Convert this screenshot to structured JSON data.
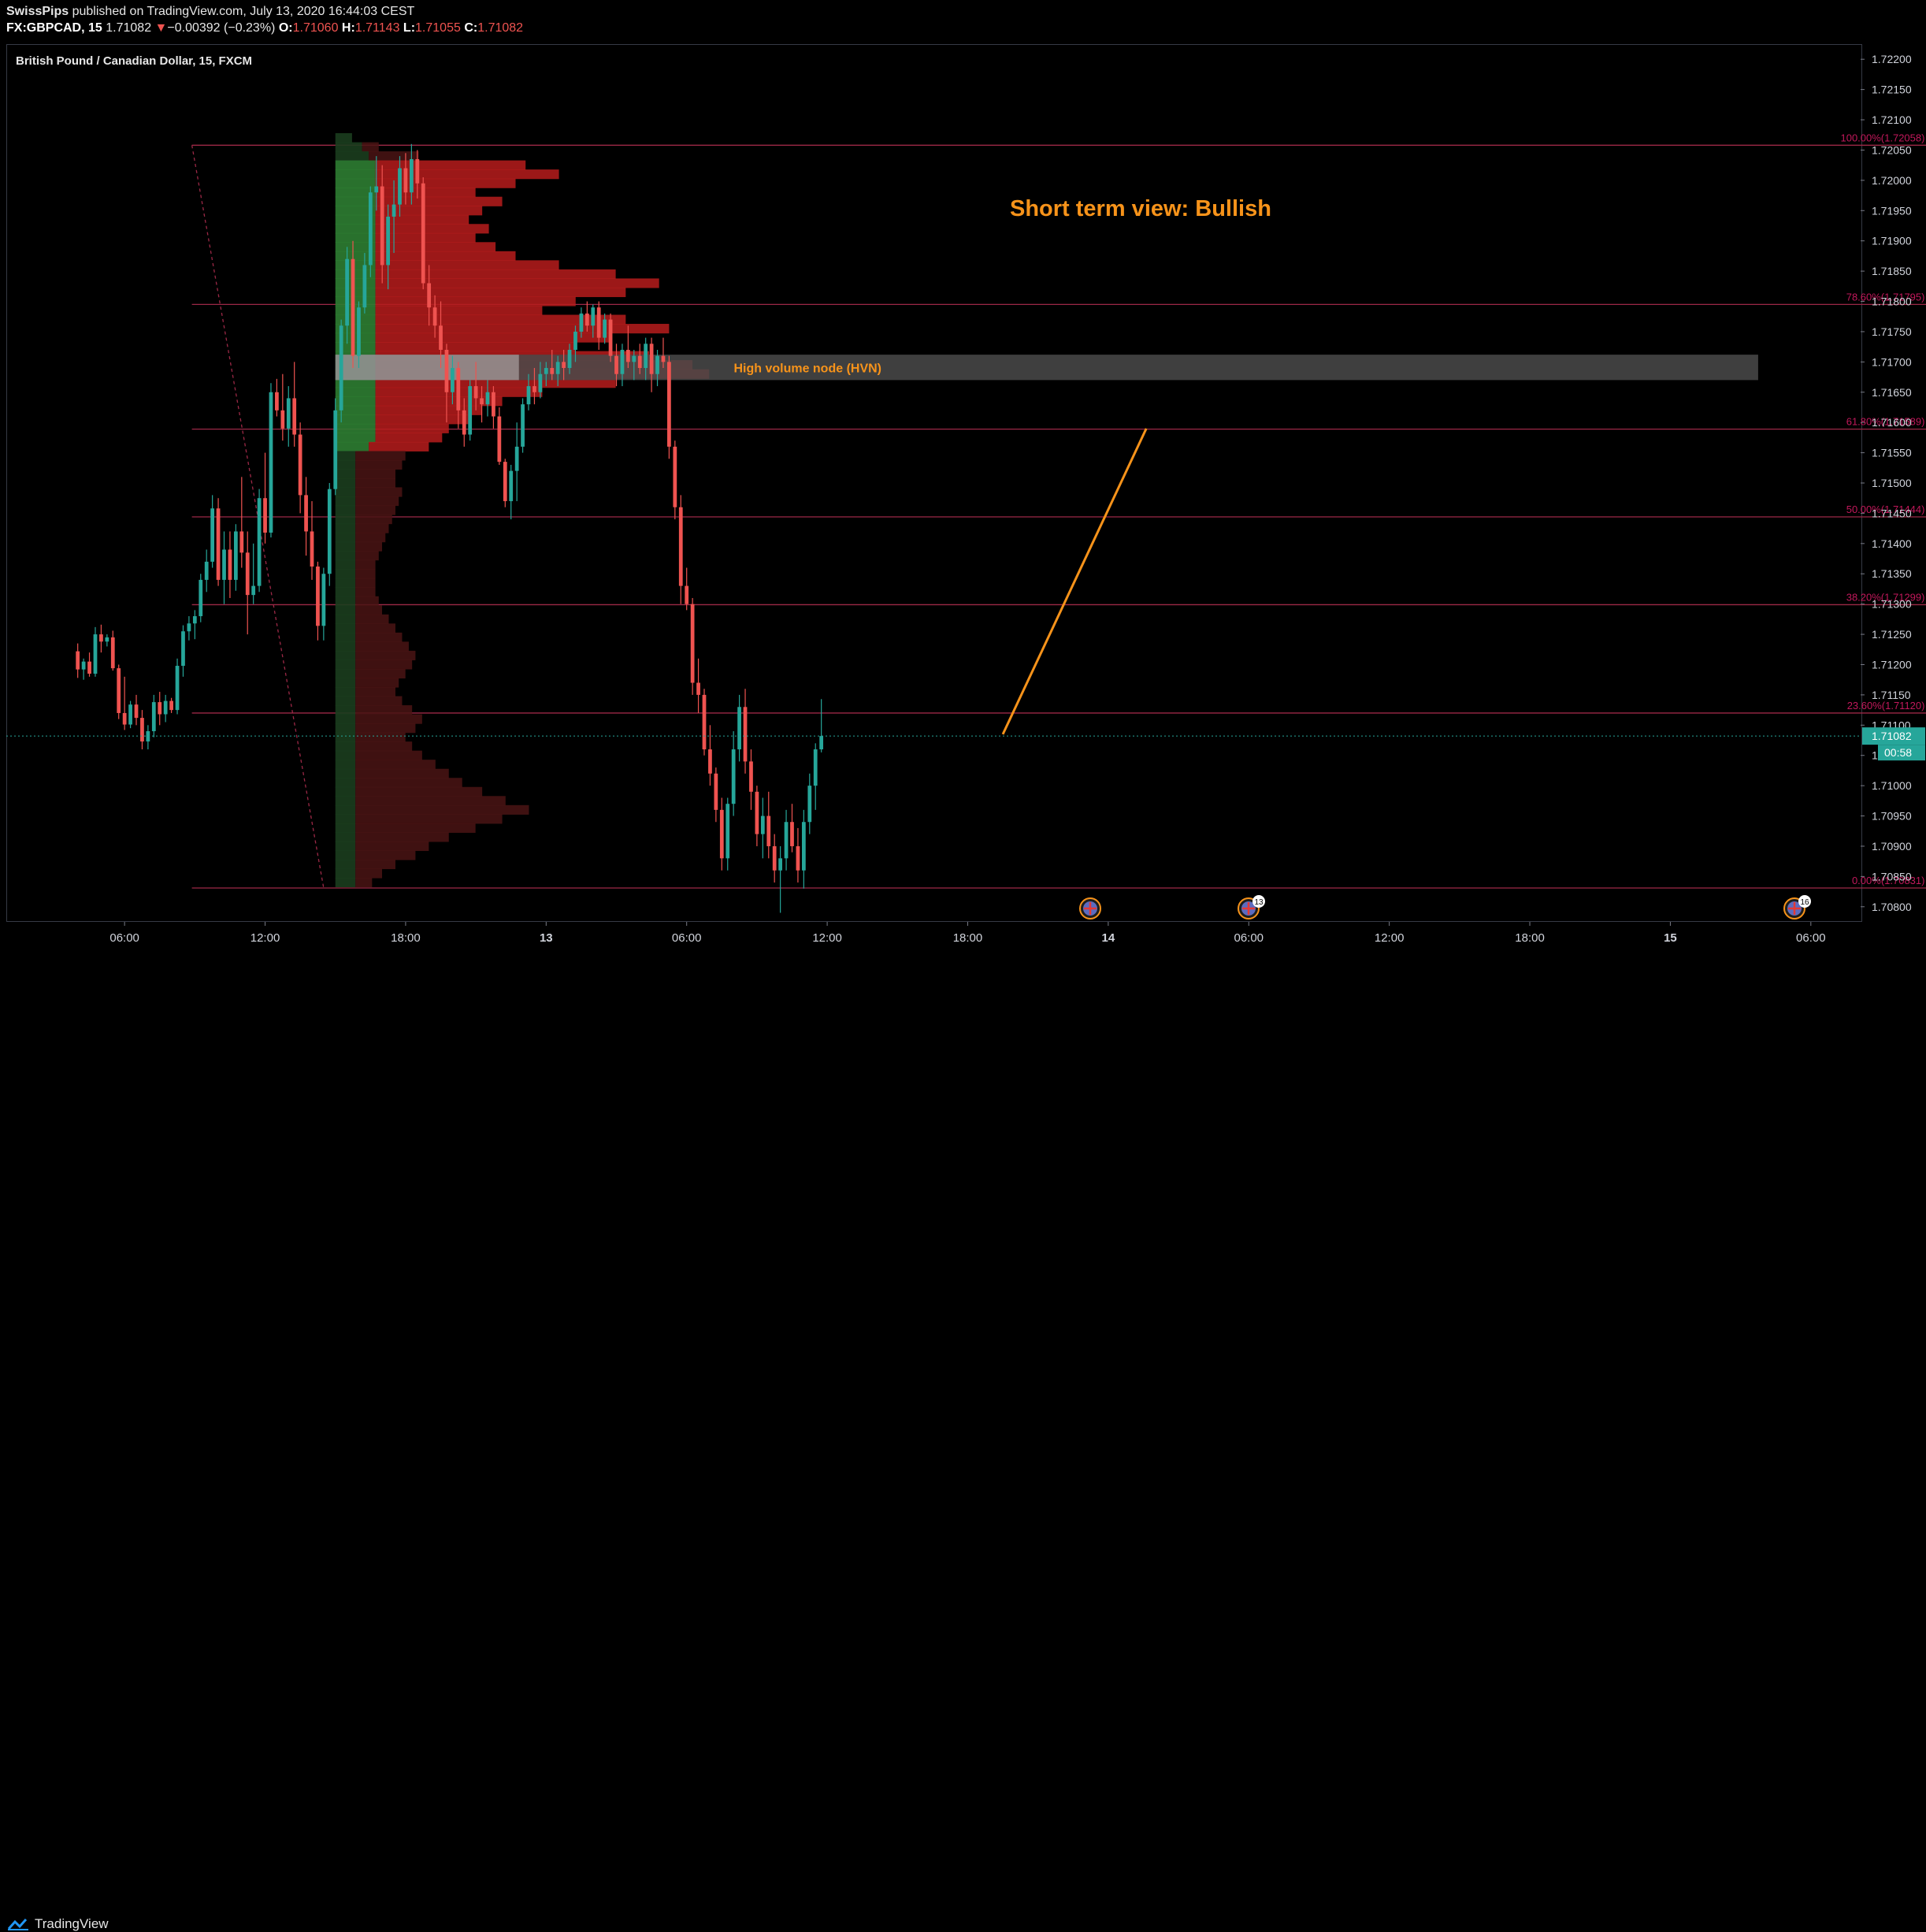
{
  "header": {
    "publisher": "SwissPips",
    "published_text": "published on TradingView.com, July 13, 2020 16:44:03 CEST",
    "symbol": "FX:GBPCAD, 15",
    "last": "1.71082",
    "change_arrow": "▼",
    "change": "−0.00392 (−0.23%)",
    "o_label": "O:",
    "o_value": "1.71060",
    "h_label": "H:",
    "h_value": "1.71143",
    "l_label": "L:",
    "l_value": "1.71055",
    "c_label": "C:",
    "c_value": "1.71082"
  },
  "chart_title": "British Pound / Canadian Dollar, 15, FXCM",
  "footer": {
    "brand": "TradingView"
  },
  "colors": {
    "up": "#26a69a",
    "down": "#ef5350",
    "fib_line": "#9c2846",
    "fib_label": "#c2185b",
    "annotation": "#f7931a",
    "hvn_band": "#4a4a4a",
    "last_price_bg": "#26a69a"
  },
  "chart_data": {
    "type": "candlestick",
    "symbol": "GBPCAD",
    "interval": "15",
    "ylim": [
      1.70775,
      1.72225
    ],
    "y_ticks": [
      "1.72200",
      "1.72150",
      "1.72100",
      "1.72050",
      "1.72000",
      "1.71950",
      "1.71900",
      "1.71850",
      "1.71800",
      "1.71750",
      "1.71700",
      "1.71650",
      "1.71600",
      "1.71550",
      "1.71500",
      "1.71450",
      "1.71400",
      "1.71350",
      "1.71300",
      "1.71250",
      "1.71200",
      "1.71150",
      "1.71100",
      "1.71050",
      "1.71000",
      "1.70950",
      "1.70900",
      "1.70850",
      "1.70800"
    ],
    "x_ticks": [
      {
        "label": "06:00",
        "bar": 8
      },
      {
        "label": "12:00",
        "bar": 32
      },
      {
        "label": "18:00",
        "bar": 56
      },
      {
        "label": "13",
        "bar": 80
      },
      {
        "label": "06:00",
        "bar": 104
      },
      {
        "label": "12:00",
        "bar": 128
      },
      {
        "label": "18:00",
        "bar": 152
      },
      {
        "label": "14",
        "bar": 176
      },
      {
        "label": "06:00",
        "bar": 200
      },
      {
        "label": "12:00",
        "bar": 224
      },
      {
        "label": "18:00",
        "bar": 248
      },
      {
        "label": "15",
        "bar": 272
      },
      {
        "label": "06:00",
        "bar": 296
      }
    ],
    "bar_range": [
      -12.2,
      304.5
    ],
    "last_price": "1.71082",
    "countdown": "00:58",
    "fib_levels": [
      {
        "label": "100.00%(1.72058)",
        "price": 1.72058
      },
      {
        "label": "78.60%(1.71795)",
        "price": 1.71795
      },
      {
        "label": "61.80%(1.71589)",
        "price": 1.71589
      },
      {
        "label": "50.00%(1.71444)",
        "price": 1.71444
      },
      {
        "label": "38.20%(1.71299)",
        "price": 1.71299
      },
      {
        "label": "23.60%(1.71120)",
        "price": 1.7112
      },
      {
        "label": "0.00%(1.70831)",
        "price": 1.70831
      }
    ],
    "fib_bar_range": [
      19.5,
      316
    ],
    "fib_anchor": {
      "from": {
        "bar": 19.5,
        "price": 1.72058
      },
      "to": {
        "bar": 42,
        "price": 1.70831
      }
    },
    "hvn": {
      "label": "High volume node (HVN)",
      "price_top": 1.71712,
      "price_bottom": 1.7167,
      "bar_from": 44,
      "bar_to": 287
    },
    "annotation_text": "Short term view: Bullish",
    "projection": {
      "from": {
        "bar": 158,
        "price": 1.71085
      },
      "to": {
        "bar": 182.5,
        "price": 1.7159
      }
    },
    "volume_profile": {
      "bar_start": 44,
      "max_width_bars": 57
    },
    "candles": [
      [
        1.71222,
        1.71235,
        1.71178,
        1.71192
      ],
      [
        1.71192,
        1.7121,
        1.71175,
        1.71205
      ],
      [
        1.71205,
        1.7122,
        1.7118,
        1.71185
      ],
      [
        1.71185,
        1.71262,
        1.7118,
        1.7125
      ],
      [
        1.7125,
        1.71266,
        1.7122,
        1.71238
      ],
      [
        1.71238,
        1.7125,
        1.7123,
        1.71245
      ],
      [
        1.71245,
        1.71256,
        1.7119,
        1.71194
      ],
      [
        1.71194,
        1.712,
        1.7111,
        1.7112
      ],
      [
        1.7112,
        1.7118,
        1.71092,
        1.71101
      ],
      [
        1.71101,
        1.7114,
        1.71095,
        1.71134
      ],
      [
        1.71134,
        1.7115,
        1.711,
        1.71112
      ],
      [
        1.71112,
        1.71125,
        1.7106,
        1.71073
      ],
      [
        1.71073,
        1.711,
        1.7106,
        1.7109
      ],
      [
        1.7109,
        1.7115,
        1.7108,
        1.71138
      ],
      [
        1.71138,
        1.71155,
        1.711,
        1.71118
      ],
      [
        1.71118,
        1.7115,
        1.71105,
        1.7114
      ],
      [
        1.7114,
        1.71145,
        1.7112,
        1.71125
      ],
      [
        1.71125,
        1.7121,
        1.71118,
        1.71198
      ],
      [
        1.71198,
        1.71265,
        1.7118,
        1.71255
      ],
      [
        1.71255,
        1.7128,
        1.7124,
        1.71268
      ],
      [
        1.71268,
        1.7129,
        1.71242,
        1.7128
      ],
      [
        1.7128,
        1.7135,
        1.7127,
        1.7134
      ],
      [
        1.7134,
        1.7139,
        1.7132,
        1.7137
      ],
      [
        1.7137,
        1.7148,
        1.7136,
        1.71458
      ],
      [
        1.71458,
        1.71475,
        1.7133,
        1.7134
      ],
      [
        1.7134,
        1.7142,
        1.713,
        1.7139
      ],
      [
        1.7139,
        1.7142,
        1.7131,
        1.7134
      ],
      [
        1.7134,
        1.71432,
        1.71322,
        1.7142
      ],
      [
        1.7142,
        1.7151,
        1.7136,
        1.71385
      ],
      [
        1.71385,
        1.7142,
        1.7125,
        1.71315
      ],
      [
        1.71315,
        1.714,
        1.713,
        1.7133
      ],
      [
        1.7133,
        1.7149,
        1.7132,
        1.71475
      ],
      [
        1.71475,
        1.7155,
        1.714,
        1.71418
      ],
      [
        1.71418,
        1.71665,
        1.7141,
        1.7165
      ],
      [
        1.7165,
        1.71672,
        1.7161,
        1.7162
      ],
      [
        1.7162,
        1.7168,
        1.7157,
        1.7159
      ],
      [
        1.7159,
        1.7166,
        1.7156,
        1.7164
      ],
      [
        1.7164,
        1.717,
        1.7156,
        1.7158
      ],
      [
        1.7158,
        1.716,
        1.7145,
        1.7148
      ],
      [
        1.7148,
        1.7151,
        1.7138,
        1.7142
      ],
      [
        1.7142,
        1.7147,
        1.7134,
        1.71362
      ],
      [
        1.71362,
        1.7137,
        1.7124,
        1.71264
      ],
      [
        1.71264,
        1.7136,
        1.7124,
        1.7135
      ],
      [
        1.7135,
        1.715,
        1.7133,
        1.7149
      ],
      [
        1.7149,
        1.7164,
        1.7148,
        1.7162
      ],
      [
        1.7162,
        1.7177,
        1.716,
        1.7176
      ],
      [
        1.7176,
        1.7189,
        1.7173,
        1.7187
      ],
      [
        1.7187,
        1.719,
        1.7169,
        1.7171
      ],
      [
        1.7171,
        1.718,
        1.7169,
        1.7179
      ],
      [
        1.7179,
        1.7188,
        1.7178,
        1.7186
      ],
      [
        1.7186,
        1.7199,
        1.7184,
        1.7198
      ],
      [
        1.7198,
        1.7204,
        1.7195,
        1.7199
      ],
      [
        1.7199,
        1.72025,
        1.7183,
        1.7186
      ],
      [
        1.7186,
        1.7196,
        1.7182,
        1.7194
      ],
      [
        1.7194,
        1.72,
        1.7188,
        1.7196
      ],
      [
        1.7196,
        1.7204,
        1.7194,
        1.7202
      ],
      [
        1.7202,
        1.72045,
        1.7196,
        1.7198
      ],
      [
        1.7198,
        1.7206,
        1.7196,
        1.72035
      ],
      [
        1.72035,
        1.7205,
        1.7197,
        1.71995
      ],
      [
        1.71995,
        1.72005,
        1.7182,
        1.7183
      ],
      [
        1.7183,
        1.7186,
        1.7176,
        1.7179
      ],
      [
        1.7179,
        1.7181,
        1.7174,
        1.7176
      ],
      [
        1.7176,
        1.718,
        1.7169,
        1.7172
      ],
      [
        1.7172,
        1.7173,
        1.716,
        1.7165
      ],
      [
        1.7165,
        1.7171,
        1.7163,
        1.7169
      ],
      [
        1.7169,
        1.717,
        1.7159,
        1.7162
      ],
      [
        1.7162,
        1.7164,
        1.7156,
        1.7158
      ],
      [
        1.7158,
        1.7167,
        1.7157,
        1.7166
      ],
      [
        1.7166,
        1.717,
        1.7162,
        1.7164
      ],
      [
        1.7164,
        1.7166,
        1.716,
        1.7163
      ],
      [
        1.7163,
        1.7167,
        1.7161,
        1.7165
      ],
      [
        1.7165,
        1.7166,
        1.7159,
        1.7161
      ],
      [
        1.7161,
        1.71625,
        1.7153,
        1.71535
      ],
      [
        1.71535,
        1.7154,
        1.7146,
        1.7147
      ],
      [
        1.7147,
        1.7153,
        1.7144,
        1.7152
      ],
      [
        1.7152,
        1.716,
        1.7147,
        1.7156
      ],
      [
        1.7156,
        1.7164,
        1.7155,
        1.7163
      ],
      [
        1.7163,
        1.7168,
        1.7162,
        1.7166
      ],
      [
        1.7166,
        1.7169,
        1.7163,
        1.7165
      ],
      [
        1.7165,
        1.717,
        1.7164,
        1.7168
      ],
      [
        1.7168,
        1.717,
        1.7166,
        1.7169
      ],
      [
        1.7169,
        1.7172,
        1.7167,
        1.7168
      ],
      [
        1.7168,
        1.7171,
        1.7166,
        1.717
      ],
      [
        1.717,
        1.7172,
        1.7167,
        1.7169
      ],
      [
        1.7169,
        1.7173,
        1.7168,
        1.7172
      ],
      [
        1.7172,
        1.7176,
        1.717,
        1.7175
      ],
      [
        1.7175,
        1.7179,
        1.7174,
        1.7178
      ],
      [
        1.7178,
        1.718,
        1.7175,
        1.7176
      ],
      [
        1.7176,
        1.71795,
        1.7174,
        1.7179
      ],
      [
        1.7179,
        1.718,
        1.7172,
        1.7174
      ],
      [
        1.7174,
        1.7178,
        1.7173,
        1.7177
      ],
      [
        1.7177,
        1.7178,
        1.717,
        1.7171
      ],
      [
        1.7171,
        1.7173,
        1.7166,
        1.7168
      ],
      [
        1.7168,
        1.7173,
        1.7166,
        1.7172
      ],
      [
        1.7172,
        1.7176,
        1.7169,
        1.717
      ],
      [
        1.717,
        1.7172,
        1.7167,
        1.7171
      ],
      [
        1.7171,
        1.7173,
        1.7168,
        1.7169
      ],
      [
        1.7169,
        1.7174,
        1.7167,
        1.7173
      ],
      [
        1.7173,
        1.7174,
        1.7165,
        1.7168
      ],
      [
        1.7168,
        1.7172,
        1.7166,
        1.7171
      ],
      [
        1.7171,
        1.7174,
        1.7169,
        1.717
      ],
      [
        1.717,
        1.7171,
        1.7154,
        1.7156
      ],
      [
        1.7156,
        1.7157,
        1.7144,
        1.7146
      ],
      [
        1.7146,
        1.7148,
        1.713,
        1.7133
      ],
      [
        1.7133,
        1.7136,
        1.7129,
        1.713
      ],
      [
        1.713,
        1.7131,
        1.7115,
        1.7117
      ],
      [
        1.7117,
        1.7121,
        1.7112,
        1.7115
      ],
      [
        1.7115,
        1.7116,
        1.7105,
        1.7106
      ],
      [
        1.7106,
        1.711,
        1.71,
        1.7102
      ],
      [
        1.7102,
        1.7103,
        1.7094,
        1.7096
      ],
      [
        1.7096,
        1.7098,
        1.7086,
        1.7088
      ],
      [
        1.7088,
        1.7098,
        1.7086,
        1.7097
      ],
      [
        1.7097,
        1.7109,
        1.7095,
        1.7106
      ],
      [
        1.7106,
        1.7115,
        1.7104,
        1.7113
      ],
      [
        1.7113,
        1.7116,
        1.7102,
        1.7104
      ],
      [
        1.7104,
        1.7106,
        1.7096,
        1.7099
      ],
      [
        1.7099,
        1.71,
        1.709,
        1.7092
      ],
      [
        1.7092,
        1.7098,
        1.7088,
        1.7095
      ],
      [
        1.7095,
        1.7099,
        1.7088,
        1.709
      ],
      [
        1.709,
        1.7092,
        1.7084,
        1.7086
      ],
      [
        1.7086,
        1.709,
        1.7079,
        1.7088
      ],
      [
        1.7088,
        1.7096,
        1.7086,
        1.7094
      ],
      [
        1.7094,
        1.7097,
        1.7089,
        1.709
      ],
      [
        1.709,
        1.7093,
        1.7084,
        1.7086
      ],
      [
        1.7086,
        1.7096,
        1.7083,
        1.7094
      ],
      [
        1.7094,
        1.7102,
        1.7092,
        1.71
      ],
      [
        1.71,
        1.7107,
        1.7096,
        1.7106
      ],
      [
        1.7106,
        1.71143,
        1.71055,
        1.71082
      ]
    ],
    "volume_profile_rows": [
      [
        1.7207,
        0.05,
        0.0
      ],
      [
        1.72055,
        0.08,
        0.05
      ],
      [
        1.7204,
        0.1,
        0.15
      ],
      [
        1.72025,
        0.12,
        0.45
      ],
      [
        1.7201,
        0.12,
        0.55
      ],
      [
        1.71995,
        0.12,
        0.42
      ],
      [
        1.7198,
        0.12,
        0.3
      ],
      [
        1.71965,
        0.12,
        0.38
      ],
      [
        1.7195,
        0.12,
        0.32
      ],
      [
        1.71935,
        0.12,
        0.28
      ],
      [
        1.7192,
        0.12,
        0.34
      ],
      [
        1.71905,
        0.12,
        0.3
      ],
      [
        1.7189,
        0.12,
        0.36
      ],
      [
        1.71875,
        0.12,
        0.42
      ],
      [
        1.7186,
        0.12,
        0.55
      ],
      [
        1.71845,
        0.12,
        0.72
      ],
      [
        1.7183,
        0.12,
        0.85
      ],
      [
        1.71815,
        0.12,
        0.75
      ],
      [
        1.718,
        0.12,
        0.6
      ],
      [
        1.71785,
        0.12,
        0.5
      ],
      [
        1.7177,
        0.12,
        0.75
      ],
      [
        1.71755,
        0.12,
        0.88
      ],
      [
        1.7174,
        0.12,
        0.7
      ],
      [
        1.71725,
        0.12,
        0.6
      ],
      [
        1.7171,
        0.12,
        0.82
      ],
      [
        1.71695,
        0.12,
        0.95
      ],
      [
        1.7168,
        0.12,
        1.0
      ],
      [
        1.71665,
        0.12,
        0.72
      ],
      [
        1.7165,
        0.12,
        0.5
      ],
      [
        1.71635,
        0.12,
        0.38
      ],
      [
        1.7162,
        0.12,
        0.32
      ],
      [
        1.71605,
        0.12,
        0.28
      ],
      [
        1.7159,
        0.12,
        0.22
      ],
      [
        1.71575,
        0.12,
        0.2
      ],
      [
        1.7156,
        0.1,
        0.18
      ],
      [
        1.71545,
        0.06,
        0.15
      ],
      [
        1.7153,
        0.06,
        0.14
      ],
      [
        1.71515,
        0.06,
        0.12
      ],
      [
        1.715,
        0.06,
        0.12
      ],
      [
        1.71485,
        0.06,
        0.14
      ],
      [
        1.7147,
        0.06,
        0.13
      ],
      [
        1.71455,
        0.06,
        0.12
      ],
      [
        1.7144,
        0.06,
        0.11
      ],
      [
        1.71425,
        0.06,
        0.1
      ],
      [
        1.7141,
        0.06,
        0.09
      ],
      [
        1.71395,
        0.06,
        0.08
      ],
      [
        1.7138,
        0.06,
        0.07
      ],
      [
        1.71365,
        0.06,
        0.06
      ],
      [
        1.7135,
        0.06,
        0.06
      ],
      [
        1.71335,
        0.06,
        0.06
      ],
      [
        1.7132,
        0.06,
        0.06
      ],
      [
        1.71305,
        0.06,
        0.07
      ],
      [
        1.7129,
        0.06,
        0.08
      ],
      [
        1.71275,
        0.06,
        0.1
      ],
      [
        1.7126,
        0.06,
        0.12
      ],
      [
        1.71245,
        0.06,
        0.14
      ],
      [
        1.7123,
        0.06,
        0.16
      ],
      [
        1.71215,
        0.06,
        0.18
      ],
      [
        1.712,
        0.06,
        0.17
      ],
      [
        1.71185,
        0.06,
        0.15
      ],
      [
        1.7117,
        0.06,
        0.13
      ],
      [
        1.71155,
        0.06,
        0.12
      ],
      [
        1.7114,
        0.06,
        0.14
      ],
      [
        1.71125,
        0.06,
        0.17
      ],
      [
        1.7111,
        0.06,
        0.2
      ],
      [
        1.71095,
        0.06,
        0.18
      ],
      [
        1.7108,
        0.06,
        0.15
      ],
      [
        1.71065,
        0.06,
        0.17
      ],
      [
        1.7105,
        0.06,
        0.2
      ],
      [
        1.71035,
        0.06,
        0.24
      ],
      [
        1.7102,
        0.06,
        0.28
      ],
      [
        1.71005,
        0.06,
        0.32
      ],
      [
        1.7099,
        0.06,
        0.38
      ],
      [
        1.70975,
        0.06,
        0.45
      ],
      [
        1.7096,
        0.06,
        0.52
      ],
      [
        1.70945,
        0.06,
        0.44
      ],
      [
        1.7093,
        0.06,
        0.36
      ],
      [
        1.70915,
        0.06,
        0.28
      ],
      [
        1.709,
        0.06,
        0.22
      ],
      [
        1.70885,
        0.06,
        0.18
      ],
      [
        1.7087,
        0.06,
        0.12
      ],
      [
        1.70855,
        0.06,
        0.08
      ],
      [
        1.7084,
        0.06,
        0.05
      ]
    ]
  }
}
